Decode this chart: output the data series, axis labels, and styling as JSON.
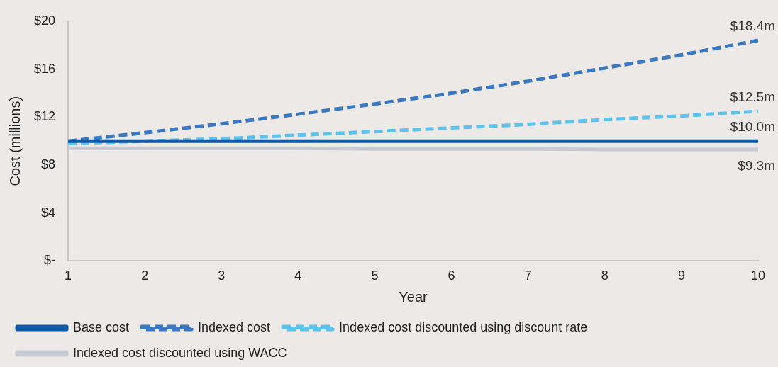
{
  "chart_data": {
    "type": "line",
    "xlabel": "Year",
    "ylabel": "Cost (millions)",
    "x": [
      1,
      2,
      3,
      4,
      5,
      6,
      7,
      8,
      9,
      10
    ],
    "xlim": [
      1,
      10
    ],
    "xticks": [
      1,
      2,
      3,
      4,
      5,
      6,
      7,
      8,
      9,
      10
    ],
    "ylim": [
      0,
      20
    ],
    "yticks": [
      {
        "value": 0,
        "label": "$-"
      },
      {
        "value": 4,
        "label": "$4"
      },
      {
        "value": 8,
        "label": "$8"
      },
      {
        "value": 12,
        "label": "$12"
      },
      {
        "value": 16,
        "label": "$16"
      },
      {
        "value": 20,
        "label": "$20"
      }
    ],
    "grid": false,
    "legend": "bottom",
    "marker": "none",
    "series": [
      {
        "name": "Base cost",
        "color": "#0f5aa8",
        "line_style": "solid",
        "values": [
          10,
          10,
          10,
          10,
          10,
          10,
          10,
          10,
          10,
          10
        ],
        "value_labels": [
          null,
          null,
          null,
          null,
          null,
          null,
          null,
          null,
          null,
          "$10.0m"
        ]
      },
      {
        "name": "Indexed cost",
        "color": "#3a78bf",
        "line_style": "dashed",
        "values": [
          10,
          10.7,
          11.45,
          12.25,
          13.1,
          14.0,
          15.0,
          16.1,
          17.2,
          18.4
        ],
        "value_labels": [
          null,
          null,
          null,
          null,
          null,
          null,
          null,
          null,
          null,
          "$18.4m"
        ]
      },
      {
        "name": "Indexed cost discounted using discount rate",
        "color": "#5ec3ec",
        "line_style": "dashed",
        "values": [
          9.8,
          10.0,
          10.2,
          10.5,
          10.8,
          11.1,
          11.4,
          11.8,
          12.1,
          12.5
        ],
        "value_labels": [
          null,
          null,
          null,
          null,
          null,
          null,
          null,
          null,
          null,
          "$12.5m"
        ]
      },
      {
        "name": "Indexed cost discounted using WACC",
        "color": "#c7cad3",
        "line_style": "solid",
        "values": [
          9.4,
          9.4,
          9.4,
          9.4,
          9.35,
          9.35,
          9.35,
          9.3,
          9.3,
          9.3
        ],
        "value_labels": [
          null,
          null,
          null,
          null,
          null,
          null,
          null,
          null,
          null,
          "$9.3m"
        ]
      }
    ]
  }
}
